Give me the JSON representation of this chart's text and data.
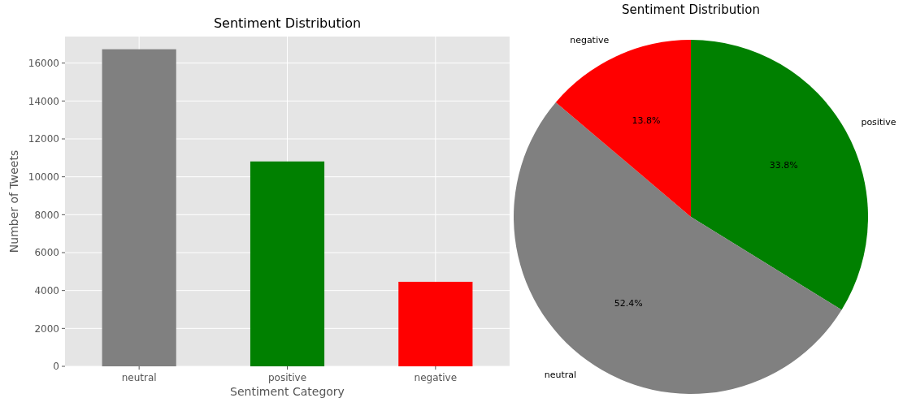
{
  "chart_data": [
    {
      "type": "bar",
      "title": "Sentiment Distribution",
      "xlabel": "Sentiment Category",
      "ylabel": "Number of Tweets",
      "categories": [
        "neutral",
        "positive",
        "negative"
      ],
      "values": [
        16730,
        10810,
        4460
      ],
      "colors": [
        "#808080",
        "#008000",
        "#ff0000"
      ],
      "ylim": [
        0,
        17400
      ],
      "yticks": [
        0,
        2000,
        4000,
        6000,
        8000,
        10000,
        12000,
        14000,
        16000
      ],
      "grid": true
    },
    {
      "type": "pie",
      "title": "Sentiment Distribution",
      "categories": [
        "positive",
        "neutral",
        "negative"
      ],
      "values": [
        33.8,
        52.4,
        13.8
      ],
      "colors": [
        "#008000",
        "#808080",
        "#ff0000"
      ],
      "value_labels": [
        "33.8%",
        "52.4%",
        "13.8%"
      ]
    }
  ]
}
